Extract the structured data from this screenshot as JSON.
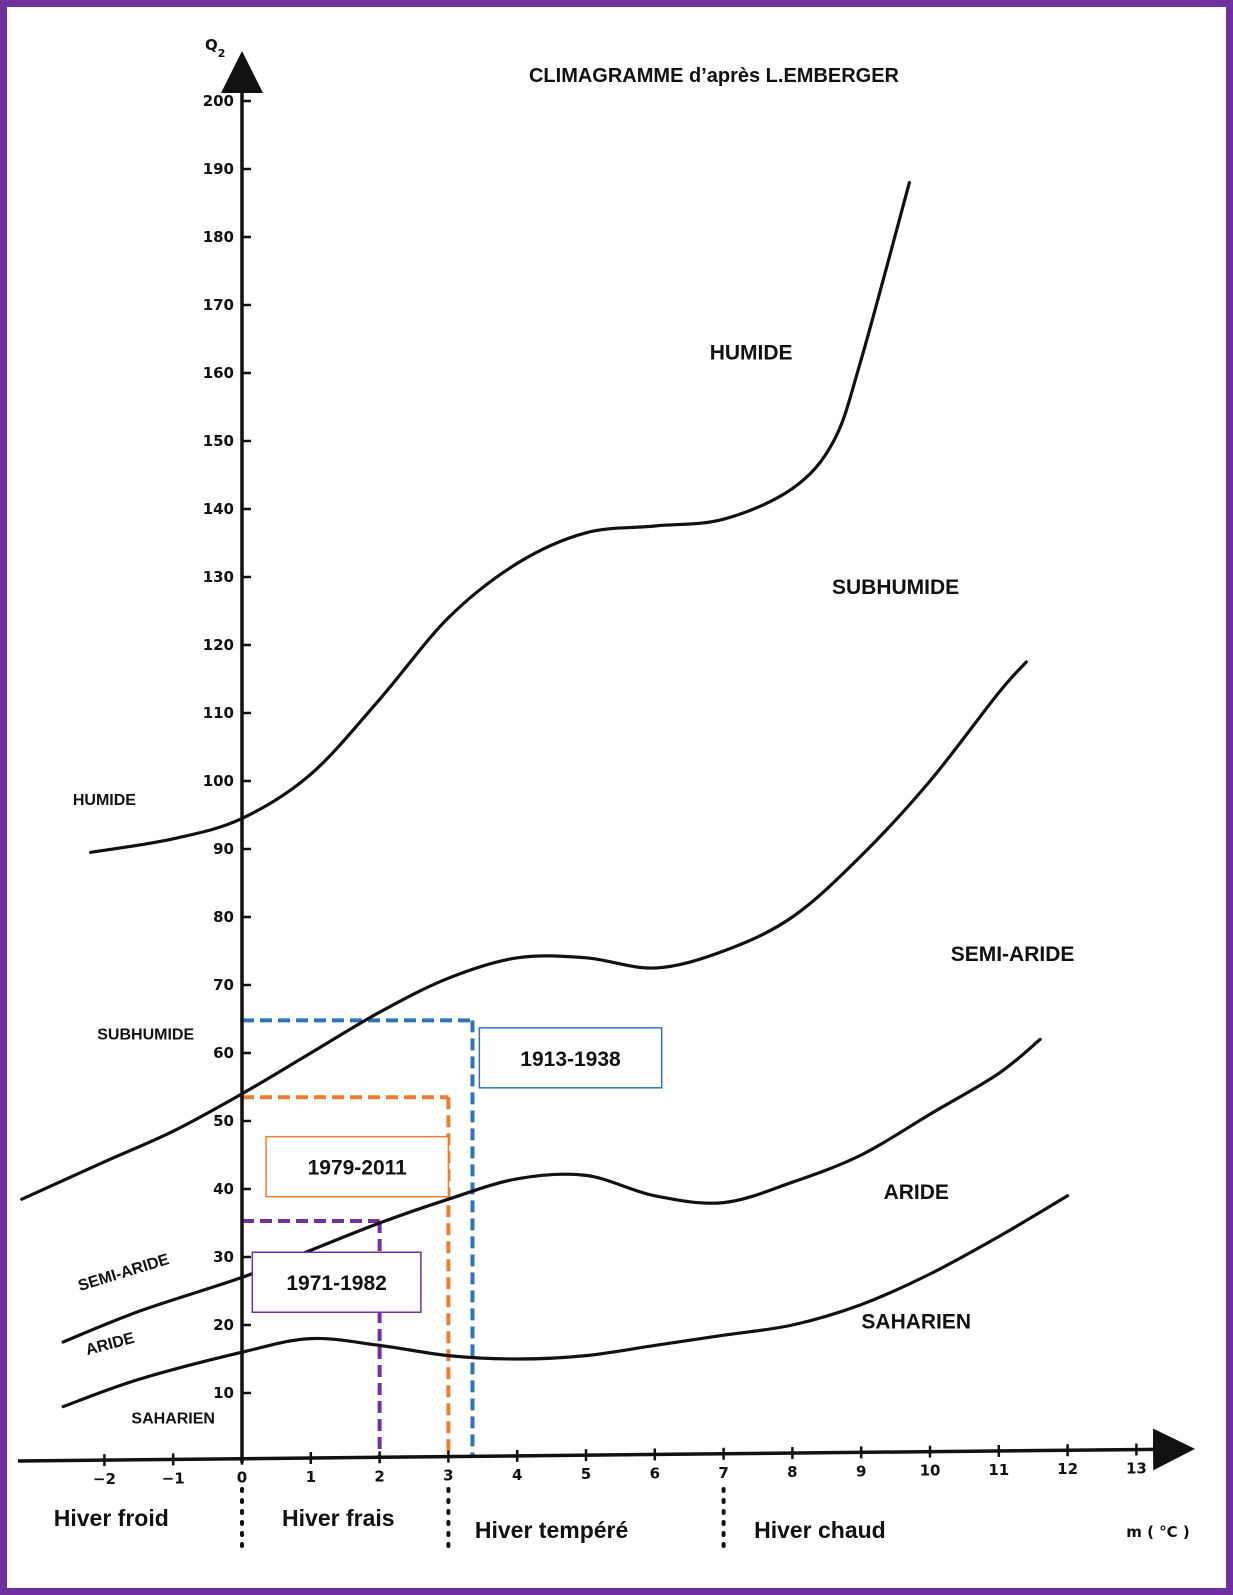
{
  "chart_data": {
    "type": "line",
    "title": "CLIMAGRAMME d’après L.EMBERGER",
    "xlabel": "m ( °C )",
    "ylabel": "Q2",
    "xlim": [
      -3.2,
      13.8
    ],
    "ylim": [
      0,
      205
    ],
    "x_ticks": [
      -2,
      -1,
      0,
      1,
      2,
      3,
      4,
      5,
      6,
      7,
      8,
      9,
      10,
      11,
      12,
      13
    ],
    "y_ticks": [
      10,
      20,
      30,
      40,
      50,
      60,
      70,
      80,
      90,
      100,
      110,
      120,
      130,
      140,
      150,
      160,
      170,
      180,
      190,
      200
    ],
    "grid": false,
    "boundaries": [
      {
        "between": "HUMIDE / SUBHUMIDE",
        "points": [
          [
            -2.2,
            89.5
          ],
          [
            -1,
            91.5
          ],
          [
            0,
            94.5
          ],
          [
            1,
            101
          ],
          [
            2,
            112
          ],
          [
            3,
            124
          ],
          [
            4,
            132
          ],
          [
            5,
            136.5
          ],
          [
            6,
            137.5
          ],
          [
            7,
            138.5
          ],
          [
            8,
            143
          ],
          [
            8.6,
            150
          ],
          [
            9,
            162
          ],
          [
            9.7,
            188
          ]
        ]
      },
      {
        "between": "SUBHUMIDE / SEMI-ARIDE",
        "points": [
          [
            -3.2,
            38.5
          ],
          [
            -2,
            44
          ],
          [
            -1,
            48.5
          ],
          [
            0,
            54
          ],
          [
            1,
            60
          ],
          [
            2,
            66
          ],
          [
            3,
            71
          ],
          [
            4,
            74
          ],
          [
            5,
            74
          ],
          [
            6,
            72.5
          ],
          [
            7,
            75
          ],
          [
            8,
            80
          ],
          [
            9,
            89
          ],
          [
            10,
            100
          ],
          [
            11,
            113
          ],
          [
            11.4,
            117.5
          ]
        ]
      },
      {
        "between": "SEMI-ARIDE / ARIDE",
        "points": [
          [
            -2.6,
            17.5
          ],
          [
            -1.5,
            22
          ],
          [
            0,
            27
          ],
          [
            1,
            31
          ],
          [
            2,
            35
          ],
          [
            3,
            38.5
          ],
          [
            4,
            41.5
          ],
          [
            5,
            42
          ],
          [
            6,
            39
          ],
          [
            7,
            38
          ],
          [
            8,
            41
          ],
          [
            9,
            45
          ],
          [
            10,
            51
          ],
          [
            11,
            57
          ],
          [
            11.6,
            62
          ]
        ]
      },
      {
        "between": "ARIDE / SAHARIEN",
        "points": [
          [
            -2.6,
            8
          ],
          [
            -1.5,
            12
          ],
          [
            0,
            16
          ],
          [
            1,
            18
          ],
          [
            2,
            17
          ],
          [
            3,
            15.5
          ],
          [
            4,
            15
          ],
          [
            5,
            15.5
          ],
          [
            6,
            17
          ],
          [
            7,
            18.5
          ],
          [
            8,
            20
          ],
          [
            9,
            23
          ],
          [
            10,
            27.5
          ],
          [
            11,
            33
          ],
          [
            12,
            39
          ]
        ]
      }
    ],
    "zones_right": [
      {
        "label": "HUMIDE",
        "x": 7.4,
        "y": 162
      },
      {
        "label": "SUBHUMIDE",
        "x": 9.5,
        "y": 127.5
      },
      {
        "label": "SEMI-ARIDE",
        "x": 11.2,
        "y": 73.5
      },
      {
        "label": "ARIDE",
        "x": 9.8,
        "y": 38.5
      },
      {
        "label": "SAHARIEN",
        "x": 9.8,
        "y": 19.5
      }
    ],
    "zones_left": [
      {
        "label": "HUMIDE",
        "x": -2.0,
        "y": 96.5,
        "angle": 0
      },
      {
        "label": "SUBHUMIDE",
        "x": -1.4,
        "y": 62,
        "angle": 0
      },
      {
        "label": "SEMI-ARIDE",
        "x": -1.7,
        "y": 27,
        "angle": -17
      },
      {
        "label": "ARIDE",
        "x": -1.9,
        "y": 16.5,
        "angle": -15
      },
      {
        "label": "SAHARIEN",
        "x": -1.0,
        "y": 5.5,
        "angle": 0
      }
    ],
    "periods": [
      {
        "label": "1913-1938",
        "x": 3.35,
        "y": 64.8,
        "color": "#2e75b6",
        "box": {
          "x": 3.45,
          "y": 55.5,
          "w": 2.65,
          "y_bottom": 59.5
        }
      },
      {
        "label": "1979-2011",
        "x": 3.0,
        "y": 53.5,
        "color": "#ed7d31",
        "box": {
          "x": 0.35,
          "y": 39.5,
          "w": 2.65,
          "y_bottom": 43.5
        }
      },
      {
        "label": "1971-1982",
        "x": 2.0,
        "y": 35.3,
        "color": "#7030a0",
        "box": {
          "x": 0.15,
          "y": 22,
          "w": 2.45,
          "y_bottom": 26.5
        }
      }
    ],
    "winter_classes": [
      {
        "label": "Hiver froid",
        "x": -1.9
      },
      {
        "label": "Hiver frais",
        "x": 1.4
      },
      {
        "label": "Hiver tempéré",
        "x": 4.5
      },
      {
        "label": "Hiver chaud",
        "x": 8.4
      }
    ],
    "winter_separators": [
      0,
      3,
      7
    ]
  },
  "colors": {
    "frame": "#7030a0",
    "axis": "#111111"
  }
}
